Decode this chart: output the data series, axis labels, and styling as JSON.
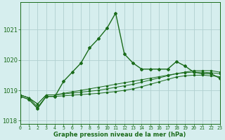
{
  "hours": [
    0,
    1,
    2,
    3,
    4,
    5,
    6,
    7,
    8,
    9,
    10,
    11,
    12,
    13,
    14,
    15,
    16,
    17,
    18,
    19,
    20,
    21,
    22,
    23
  ],
  "pressure_main": [
    1018.8,
    1018.7,
    1018.4,
    1018.8,
    1018.8,
    1019.3,
    1019.6,
    1019.9,
    1020.4,
    1020.7,
    1021.05,
    1021.55,
    1020.2,
    1019.9,
    1019.7,
    1019.7,
    1019.7,
    1019.7,
    1019.95,
    1019.8,
    1019.6,
    1019.55,
    1019.55,
    1019.4
  ],
  "pressure_line2": [
    1018.85,
    1018.75,
    1018.55,
    1018.85,
    1018.85,
    1018.9,
    1018.95,
    1019.0,
    1019.05,
    1019.1,
    1019.15,
    1019.2,
    1019.25,
    1019.3,
    1019.35,
    1019.4,
    1019.45,
    1019.5,
    1019.55,
    1019.6,
    1019.65,
    1019.65,
    1019.65,
    1019.6
  ],
  "pressure_line3": [
    1018.85,
    1018.75,
    1018.55,
    1018.85,
    1018.85,
    1018.88,
    1018.91,
    1018.94,
    1018.97,
    1019.0,
    1019.05,
    1019.1,
    1019.15,
    1019.2,
    1019.27,
    1019.34,
    1019.41,
    1019.48,
    1019.55,
    1019.58,
    1019.6,
    1019.6,
    1019.58,
    1019.55
  ],
  "pressure_line4": [
    1018.85,
    1018.75,
    1018.45,
    1018.8,
    1018.8,
    1018.82,
    1018.84,
    1018.86,
    1018.88,
    1018.9,
    1018.93,
    1018.96,
    1019.0,
    1019.05,
    1019.12,
    1019.2,
    1019.28,
    1019.36,
    1019.44,
    1019.48,
    1019.5,
    1019.5,
    1019.48,
    1019.45
  ],
  "line_color": "#1a6b1a",
  "bg_color": "#d6eeee",
  "grid_color": "#b0d0d0",
  "xlabel": "Graphe pression niveau de la mer (hPa)",
  "ylim": [
    1017.9,
    1021.9
  ],
  "yticks": [
    1018,
    1019,
    1020,
    1021
  ],
  "xlim": [
    0,
    23
  ]
}
